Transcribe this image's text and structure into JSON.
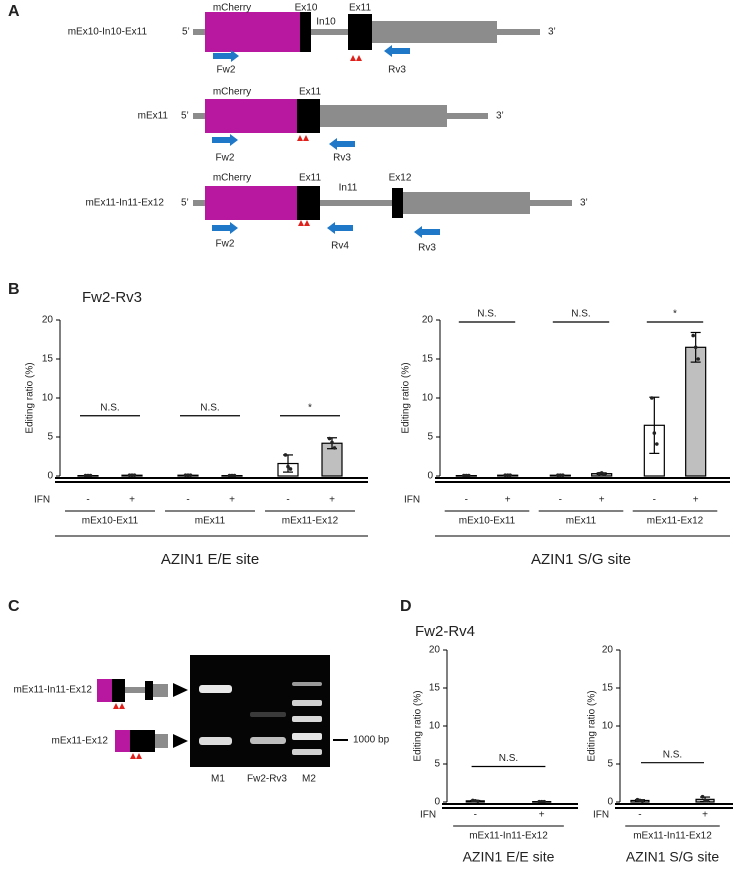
{
  "panel_labels": [
    "A",
    "B",
    "C",
    "D"
  ],
  "diagram_a": {
    "rows": [
      {
        "name": "mEx10-In10-Ex11",
        "five": "5’",
        "three": "3’",
        "labels": [
          "mCherry",
          "Ex10",
          "In10",
          "Ex11"
        ],
        "primers": [
          "Fw2",
          "Rv3"
        ]
      },
      {
        "name": "mEx11",
        "five": "5’",
        "three": "3’",
        "labels": [
          "mCherry",
          "Ex11"
        ],
        "primers": [
          "Fw2",
          "Rv3"
        ]
      },
      {
        "name": "mEx11-In11-Ex12",
        "five": "5’",
        "three": "3’",
        "labels": [
          "mCherry",
          "Ex11",
          "In11",
          "Ex12"
        ],
        "primers": [
          "Fw2",
          "Rv4",
          "Rv3"
        ]
      }
    ]
  },
  "panel_b_primer": "Fw2-Rv3",
  "panel_d_primer": "Fw2-Rv4",
  "gel": {
    "constructs": [
      "mEx11-In11-Ex12",
      "mEx11-Ex12"
    ],
    "lanes": [
      "M1",
      "Fw2-Rv3",
      "M2"
    ],
    "marker": "1000 bp"
  },
  "chart_data": [
    {
      "type": "bar",
      "title": "AZIN1 E/E site",
      "y_label": "Editing ratio (%)",
      "row_label": "IFN",
      "categories": [
        "-",
        "+",
        "-",
        "+",
        "-",
        "+"
      ],
      "groups": [
        {
          "name": "mEx10-Ex11",
          "significance": "N.S."
        },
        {
          "name": "mEx11",
          "significance": "N.S."
        },
        {
          "name": "mEx11-Ex12",
          "significance": "*"
        }
      ],
      "values": [
        0.05,
        0.1,
        0.1,
        0.05,
        1.6,
        4.2
      ],
      "errors": [
        0,
        0,
        0,
        0,
        1.1,
        0.7
      ],
      "points": [
        [
          0.05,
          0.05,
          0.05
        ],
        [
          0.1,
          0.1,
          0.1
        ],
        [
          0.1,
          0.1,
          0.1
        ],
        [
          0.05,
          0.05,
          0.05
        ],
        [
          2.7,
          1.2,
          0.9
        ],
        [
          4.8,
          4.3,
          3.6
        ]
      ],
      "colors": [
        "#ffffff",
        "#bfbfbf",
        "#ffffff",
        "#bfbfbf",
        "#ffffff",
        "#bfbfbf"
      ],
      "ylim": [
        0,
        20
      ],
      "yticks": [
        0,
        5,
        10,
        15,
        20
      ]
    },
    {
      "type": "bar",
      "title": "AZIN1 S/G site",
      "y_label": "Editing ratio (%)",
      "row_label": "IFN",
      "categories": [
        "-",
        "+",
        "-",
        "+",
        "-",
        "+"
      ],
      "groups": [
        {
          "name": "mEx10-Ex11",
          "significance": "N.S."
        },
        {
          "name": "mEx11",
          "significance": "N.S."
        },
        {
          "name": "mEx11-Ex12",
          "significance": "*"
        }
      ],
      "values": [
        0.05,
        0.1,
        0.1,
        0.3,
        6.5,
        16.5
      ],
      "errors": [
        0,
        0,
        0,
        0.1,
        3.6,
        1.9
      ],
      "points": [
        [
          0.05,
          0.05,
          0.05
        ],
        [
          0.1,
          0.1,
          0.1
        ],
        [
          0.1,
          0.1,
          0.1
        ],
        [
          0.3,
          0.4,
          0.2
        ],
        [
          10,
          5.5,
          4.1
        ],
        [
          18,
          16.5,
          15
        ]
      ],
      "colors": [
        "#ffffff",
        "#bfbfbf",
        "#ffffff",
        "#bfbfbf",
        "#ffffff",
        "#bfbfbf"
      ],
      "ylim": [
        0,
        20
      ],
      "yticks": [
        0,
        5,
        10,
        15,
        20
      ]
    },
    {
      "type": "bar",
      "title": "AZIN1 E/E site",
      "y_label": "Editing ratio (%)",
      "row_label": "IFN",
      "categories": [
        "-",
        "+"
      ],
      "groups": [
        {
          "name": "mEx11-In11-Ex12",
          "significance": "N.S."
        }
      ],
      "values": [
        0.15,
        0.05
      ],
      "errors": [
        0.05,
        0
      ],
      "points": [
        [
          0.2,
          0.15,
          0.1
        ],
        [
          0.05,
          0.05,
          0.05
        ]
      ],
      "colors": [
        "#ffffff",
        "#bfbfbf"
      ],
      "ylim": [
        0,
        20
      ],
      "yticks": [
        0,
        5,
        10,
        15,
        20
      ]
    },
    {
      "type": "bar",
      "title": "AZIN1 S/G site",
      "y_label": "Editing ratio (%)",
      "row_label": "IFN",
      "categories": [
        "-",
        "+"
      ],
      "groups": [
        {
          "name": "mEx11-In11-Ex12",
          "significance": "N.S."
        }
      ],
      "values": [
        0.2,
        0.35
      ],
      "errors": [
        0.1,
        0.3
      ],
      "points": [
        [
          0.3,
          0.2,
          0.1
        ],
        [
          0.7,
          0.2,
          0.15
        ]
      ],
      "colors": [
        "#ffffff",
        "#bfbfbf"
      ],
      "ylim": [
        0,
        20
      ],
      "yticks": [
        0,
        5,
        10,
        15,
        20
      ]
    }
  ]
}
